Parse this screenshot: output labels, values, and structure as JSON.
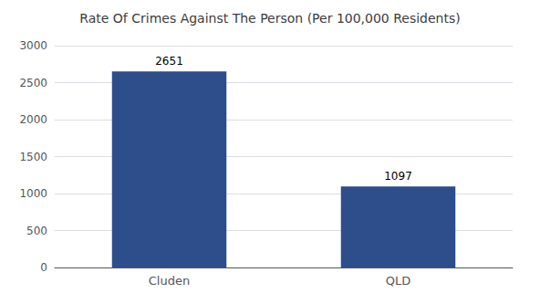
{
  "chart_data": {
    "type": "bar",
    "title": "Rate Of Crimes Against The Person (Per 100,000 Residents)",
    "categories": [
      "Cluden",
      "QLD"
    ],
    "values": [
      2651,
      1097
    ],
    "color": "#2d4d8b",
    "ylim": [
      0,
      3000
    ],
    "yticks": [
      0,
      500,
      1000,
      1500,
      2000,
      2500,
      3000
    ],
    "grid": true,
    "data_labels": true
  }
}
